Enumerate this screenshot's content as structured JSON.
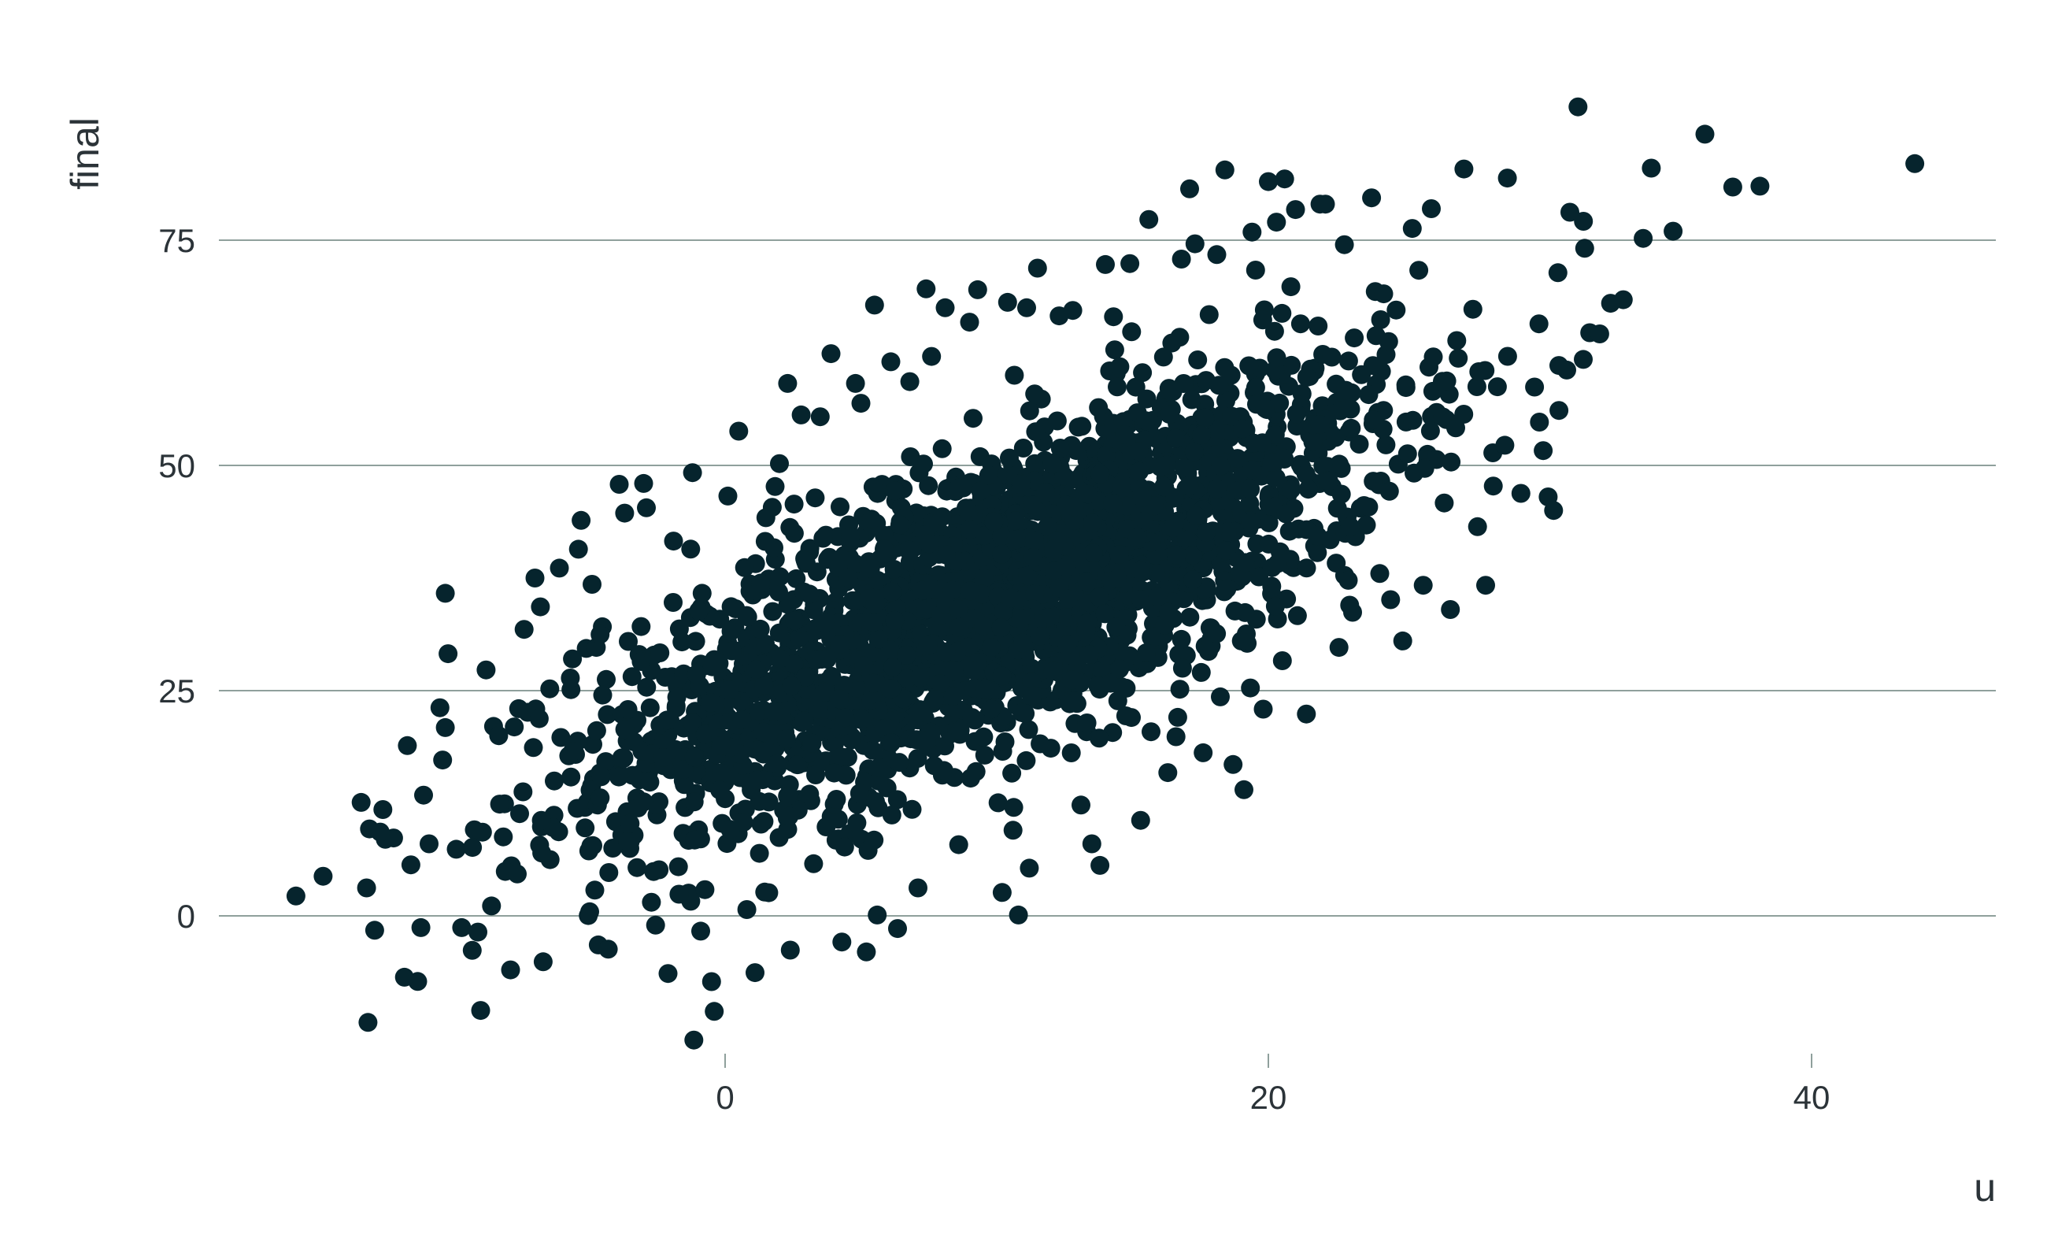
{
  "chart_data": {
    "type": "scatter",
    "title": "",
    "xlabel": "u",
    "ylabel": "final",
    "xlim": [
      -16,
      47
    ],
    "ylim": [
      -15,
      95
    ],
    "x_ticks": [
      0,
      20,
      40
    ],
    "y_ticks": [
      0,
      25,
      50,
      75
    ],
    "x_tick_labels": [
      "0",
      "20",
      "40"
    ],
    "y_tick_labels": [
      "0",
      "25",
      "50",
      "75"
    ],
    "grid": "horizontal",
    "point_color": "#06242d",
    "grid_color": "#8fa09c",
    "series": [
      {
        "points": [
          [
            -15.8,
            2.2
          ],
          [
            -14.8,
            4.4
          ],
          [
            -13.4,
            12.6
          ],
          [
            -13.2,
            3.1
          ],
          [
            -12.9,
            -1.6
          ],
          [
            -12.6,
            11.8
          ],
          [
            -12.7,
            9.3
          ],
          [
            -11.2,
            -1.3
          ],
          [
            -11.7,
            18.9
          ],
          [
            -11.1,
            13.4
          ],
          [
            -10.9,
            8.0
          ],
          [
            -10.4,
            17.3
          ],
          [
            -10.5,
            23.1
          ],
          [
            -10.3,
            20.9
          ],
          [
            -10.2,
            29.1
          ],
          [
            -10.3,
            35.8
          ],
          [
            -9.7,
            -1.3
          ],
          [
            -9.3,
            7.6
          ],
          [
            -9.1,
            -1.8
          ],
          [
            -9.0,
            -10.5
          ],
          [
            -8.8,
            27.3
          ],
          [
            -8.6,
            1.1
          ],
          [
            -8.3,
            12.4
          ],
          [
            -7.9,
            -6.0
          ],
          [
            -7.6,
            23.0
          ],
          [
            -7.4,
            31.8
          ],
          [
            -7.0,
            37.5
          ],
          [
            -6.8,
            34.3
          ],
          [
            -6.7,
            -5.1
          ],
          [
            -6.1,
            38.6
          ],
          [
            -5.7,
            26.4
          ],
          [
            -5.3,
            43.9
          ],
          [
            -5.4,
            40.7
          ],
          [
            -4.9,
            36.8
          ],
          [
            -4.6,
            13.1
          ],
          [
            -4.3,
            -3.7
          ],
          [
            -3.9,
            47.9
          ],
          [
            -3.7,
            44.7
          ],
          [
            -3.0,
            48.0
          ],
          [
            -2.9,
            45.3
          ],
          [
            -2.4,
            29.2
          ],
          [
            -2.1,
            -6.4
          ],
          [
            -1.9,
            41.6
          ],
          [
            -1.7,
            2.4
          ],
          [
            -1.2,
            49.2
          ],
          [
            -0.9,
            -1.7
          ],
          [
            -0.5,
            -7.3
          ],
          [
            -0.4,
            -10.6
          ],
          [
            0.1,
            46.6
          ],
          [
            0.5,
            53.8
          ],
          [
            0.8,
            0.7
          ],
          [
            1.1,
            -6.3
          ],
          [
            1.5,
            44.2
          ],
          [
            2.0,
            50.2
          ],
          [
            2.4,
            -3.8
          ],
          [
            2.3,
            59.1
          ],
          [
            2.8,
            55.6
          ],
          [
            3.5,
            55.4
          ],
          [
            3.9,
            62.4
          ],
          [
            4.3,
            -2.9
          ],
          [
            4.8,
            59.1
          ],
          [
            5.0,
            56.9
          ],
          [
            5.2,
            -4.0
          ],
          [
            5.5,
            67.8
          ],
          [
            5.6,
            0.1
          ],
          [
            6.1,
            61.5
          ],
          [
            6.8,
            59.3
          ],
          [
            7.1,
            3.1
          ],
          [
            7.4,
            69.6
          ],
          [
            7.6,
            62.1
          ],
          [
            8.1,
            67.5
          ],
          [
            8.6,
            7.9
          ],
          [
            9.0,
            65.9
          ],
          [
            9.3,
            69.5
          ],
          [
            10.2,
            2.6
          ],
          [
            10.4,
            68.1
          ],
          [
            10.6,
            9.5
          ],
          [
            10.8,
            0.1
          ],
          [
            11.1,
            67.5
          ],
          [
            11.2,
            5.3
          ],
          [
            11.5,
            71.9
          ],
          [
            12.3,
            66.6
          ],
          [
            12.8,
            67.2
          ],
          [
            13.1,
            12.3
          ],
          [
            13.5,
            8.0
          ],
          [
            13.8,
            5.6
          ],
          [
            14.0,
            72.3
          ],
          [
            14.3,
            66.5
          ],
          [
            14.9,
            72.4
          ],
          [
            15.3,
            10.6
          ],
          [
            15.6,
            77.3
          ],
          [
            16.3,
            15.9
          ],
          [
            16.8,
            72.9
          ],
          [
            17.1,
            80.7
          ],
          [
            17.3,
            74.6
          ],
          [
            17.6,
            18.1
          ],
          [
            18.1,
            73.4
          ],
          [
            18.4,
            82.8
          ],
          [
            18.7,
            16.8
          ],
          [
            19.1,
            14.0
          ],
          [
            19.4,
            75.9
          ],
          [
            20.0,
            81.5
          ],
          [
            20.3,
            77.0
          ],
          [
            20.6,
            81.8
          ],
          [
            21.0,
            78.4
          ],
          [
            21.4,
            22.4
          ],
          [
            22.1,
            79.0
          ],
          [
            22.6,
            29.8
          ],
          [
            22.8,
            74.5
          ],
          [
            23.1,
            33.7
          ],
          [
            23.8,
            79.7
          ],
          [
            24.1,
            38.0
          ],
          [
            24.5,
            35.1
          ],
          [
            25.3,
            76.3
          ],
          [
            25.7,
            36.7
          ],
          [
            26.0,
            78.5
          ],
          [
            26.7,
            34.0
          ],
          [
            27.2,
            82.9
          ],
          [
            27.7,
            43.2
          ],
          [
            28.0,
            36.7
          ],
          [
            28.8,
            81.9
          ],
          [
            29.3,
            46.9
          ],
          [
            29.8,
            58.7
          ],
          [
            30.3,
            46.5
          ],
          [
            30.5,
            45.0
          ],
          [
            30.7,
            56.1
          ],
          [
            31.1,
            78.1
          ],
          [
            31.4,
            89.8
          ],
          [
            31.6,
            77.1
          ],
          [
            32.2,
            64.6
          ],
          [
            32.6,
            68.0
          ],
          [
            33.8,
            75.2
          ],
          [
            34.1,
            83.0
          ],
          [
            34.9,
            76.0
          ],
          [
            37.1,
            80.9
          ],
          [
            38.1,
            81.0
          ],
          [
            43.8,
            83.5
          ]
        ]
      }
    ]
  }
}
